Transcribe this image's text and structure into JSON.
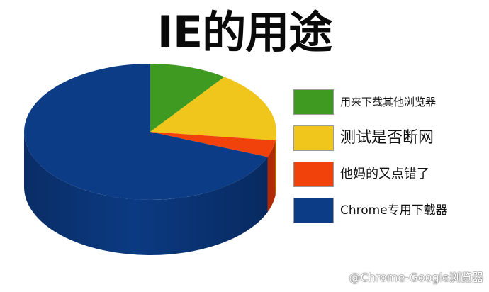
{
  "chart_data": {
    "type": "pie",
    "title": "IE的用途",
    "slices": [
      {
        "label": "用来下载其他浏览器",
        "value": 10,
        "color": "#3f9a22"
      },
      {
        "label": "测试是否断网",
        "value": 17,
        "color": "#f0c61c"
      },
      {
        "label": "他妈的又点错了",
        "value": 4,
        "color": "#f2420c"
      },
      {
        "label": "Chrome专用下载器",
        "value": 69,
        "color": "#0b3c85"
      }
    ],
    "legend_position": "right",
    "three_d": true
  },
  "watermark": {
    "text": "@Chrome-Google浏览器",
    "icon": "weibo-icon"
  }
}
